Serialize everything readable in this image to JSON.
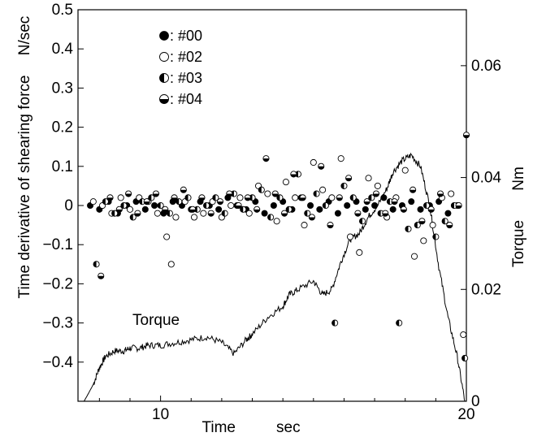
{
  "chart_data": {
    "type": "scatter",
    "xlabel": "Time",
    "xunit": "sec",
    "ylabel_left": "Time derivative of shearing force",
    "yunit_left": "N/sec",
    "ylabel_right": "Torque",
    "yunit_right": "Nm",
    "xlim": [
      7.3,
      20
    ],
    "ylim_left": [
      -0.5,
      0.5
    ],
    "ylim_right": [
      0,
      0.07
    ],
    "x_ticks": [
      10,
      20
    ],
    "y_ticks_left": [
      -0.4,
      -0.3,
      -0.2,
      -0.1,
      0,
      0.1,
      0.2,
      0.3,
      0.4,
      0.5
    ],
    "y_ticks_left_labels": [
      "−0.4",
      "−0.3",
      "−0.2",
      "−0.1",
      "0",
      "0.1",
      "0.2",
      "0.3",
      "0.4",
      "0.5"
    ],
    "y_ticks_right": [
      0,
      0.02,
      0.04,
      0.06
    ],
    "y_ticks_right_labels": [
      "0",
      "0.02",
      "0.04",
      "0.06"
    ],
    "grid": false,
    "legend_position": "top-left",
    "series": [
      {
        "name": ": #00",
        "marker": "filled-circle",
        "x": [
          7.7,
          8.0,
          8.3,
          8.6,
          8.9,
          9.2,
          9.5,
          9.8,
          10.1,
          10.4,
          10.7,
          11.0,
          11.3,
          11.6,
          11.9,
          12.2,
          12.5,
          12.8,
          13.1,
          13.4,
          13.7,
          14.0,
          14.3,
          14.6,
          14.9,
          15.2,
          15.5,
          15.8,
          16.1,
          16.4,
          16.7,
          17.0,
          17.3,
          17.6,
          17.9,
          18.2,
          18.5,
          18.8,
          19.1,
          19.4,
          19.7
        ],
        "y": [
          0.0,
          -0.01,
          0.01,
          -0.02,
          0.0,
          0.01,
          -0.01,
          0.0,
          -0.02,
          0.01,
          0.0,
          -0.01,
          0.01,
          0.0,
          -0.01,
          0.02,
          0.0,
          -0.01,
          0.01,
          -0.02,
          0.0,
          0.01,
          -0.01,
          0.02,
          0.0,
          -0.01,
          0.01,
          -0.02,
          0.0,
          0.01,
          -0.01,
          0.0,
          0.02,
          -0.01,
          0.0,
          0.01,
          -0.01,
          0.0,
          0.01,
          -0.02,
          0.0
        ]
      },
      {
        "name": ": #02",
        "marker": "open-circle",
        "x": [
          7.8,
          8.1,
          8.4,
          8.7,
          9.0,
          9.3,
          9.6,
          9.9,
          10.2,
          10.35,
          10.5,
          10.8,
          11.1,
          11.4,
          11.7,
          12.0,
          12.3,
          12.6,
          12.9,
          13.2,
          13.5,
          13.8,
          14.1,
          14.4,
          14.7,
          15.0,
          15.3,
          15.6,
          15.9,
          16.2,
          16.5,
          16.8,
          17.1,
          17.4,
          17.7,
          18.0,
          18.3,
          18.6,
          18.9,
          19.2,
          19.5,
          19.9
        ],
        "y": [
          0.01,
          0.0,
          -0.02,
          0.02,
          -0.01,
          0.02,
          0.01,
          -0.02,
          -0.08,
          -0.15,
          -0.03,
          0.01,
          -0.03,
          -0.02,
          0.01,
          -0.03,
          0.0,
          0.02,
          -0.02,
          0.05,
          0.03,
          -0.04,
          0.06,
          0.02,
          -0.05,
          0.11,
          0.04,
          0.02,
          0.12,
          -0.08,
          -0.12,
          0.07,
          0.05,
          -0.03,
          0.02,
          0.09,
          -0.13,
          -0.09,
          -0.05,
          0.02,
          0.03,
          -0.33
        ]
      },
      {
        "name": ": #03",
        "marker": "half-left-circle",
        "x": [
          7.9,
          8.2,
          8.5,
          8.8,
          9.1,
          9.4,
          9.7,
          10.0,
          10.3,
          10.6,
          10.9,
          11.2,
          11.5,
          11.8,
          12.1,
          12.4,
          12.7,
          13.0,
          13.3,
          13.6,
          13.9,
          14.2,
          14.5,
          14.8,
          15.1,
          15.4,
          15.7,
          16.0,
          16.3,
          16.6,
          16.9,
          17.2,
          17.5,
          17.8,
          18.1,
          18.4,
          18.7,
          19.0,
          19.3,
          19.6,
          19.95
        ],
        "y": [
          -0.15,
          0.01,
          -0.02,
          0.0,
          -0.03,
          0.01,
          0.02,
          0.0,
          -0.02,
          0.01,
          0.02,
          -0.01,
          0.0,
          0.02,
          -0.02,
          0.03,
          -0.01,
          0.02,
          0.04,
          -0.03,
          0.02,
          -0.01,
          0.08,
          -0.02,
          0.03,
          0.0,
          -0.3,
          0.05,
          0.02,
          -0.04,
          0.02,
          -0.02,
          0.01,
          -0.3,
          -0.06,
          -0.05,
          0.0,
          -0.08,
          -0.04,
          0.0,
          -0.39
        ]
      },
      {
        "name": ": #04",
        "marker": "half-bottom-circle",
        "x": [
          8.05,
          8.35,
          8.65,
          8.95,
          9.25,
          9.55,
          9.85,
          10.15,
          10.45,
          10.75,
          11.05,
          11.35,
          11.65,
          11.95,
          12.25,
          12.55,
          12.85,
          13.15,
          13.45,
          13.75,
          14.05,
          14.35,
          14.65,
          14.95,
          15.25,
          15.55,
          15.85,
          16.15,
          16.45,
          16.75,
          17.05,
          17.35,
          17.65,
          17.95,
          18.25,
          18.55,
          18.85,
          19.15,
          19.45,
          19.75,
          20.0
        ],
        "y": [
          -0.18,
          0.02,
          -0.01,
          0.03,
          -0.02,
          0.01,
          0.03,
          -0.01,
          0.02,
          0.04,
          -0.01,
          0.02,
          -0.02,
          0.01,
          0.03,
          0.0,
          0.02,
          -0.01,
          0.12,
          0.03,
          -0.02,
          0.08,
          0.02,
          -0.03,
          0.1,
          -0.05,
          0.02,
          0.07,
          -0.02,
          0.01,
          0.03,
          -0.02,
          0.01,
          -0.01,
          0.04,
          -0.04,
          -0.01,
          0.03,
          -0.05,
          0.0,
          0.18
        ]
      }
    ],
    "torque_series": {
      "label": "Torque",
      "axis": "right",
      "x": [
        7.5,
        7.8,
        8.0,
        8.2,
        8.5,
        8.8,
        9.0,
        9.3,
        9.6,
        10.0,
        10.5,
        11.0,
        11.5,
        12.0,
        12.4,
        12.8,
        13.0,
        13.5,
        14.0,
        14.2,
        14.5,
        15.0,
        15.3,
        15.6,
        15.9,
        16.2,
        16.5,
        16.8,
        17.1,
        17.4,
        17.6,
        17.9,
        18.2,
        18.5,
        18.8,
        19.1,
        19.4,
        19.7,
        19.95
      ],
      "y": [
        0.0,
        0.003,
        0.006,
        0.008,
        0.009,
        0.009,
        0.0095,
        0.0095,
        0.01,
        0.01,
        0.0105,
        0.011,
        0.0115,
        0.0105,
        0.0085,
        0.011,
        0.012,
        0.015,
        0.017,
        0.019,
        0.02,
        0.0215,
        0.019,
        0.02,
        0.025,
        0.029,
        0.03,
        0.033,
        0.035,
        0.038,
        0.041,
        0.043,
        0.044,
        0.042,
        0.035,
        0.024,
        0.015,
        0.008,
        0.0
      ]
    }
  }
}
